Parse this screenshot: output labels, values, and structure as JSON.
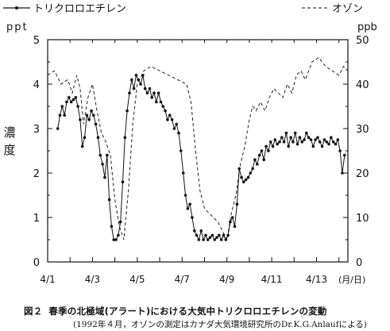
{
  "chart_data": {
    "type": "line",
    "legend": {
      "placement": "top",
      "entries": [
        "トリクロロエチレン",
        "オゾン"
      ]
    },
    "ylabel_left": "濃度",
    "left_axis_unit": "ppt",
    "right_axis_unit": "ppb",
    "x_unit": "(月/日)",
    "xlim": [
      0,
      13.4
    ],
    "ylim_left": [
      0,
      5
    ],
    "ylim_right": [
      0,
      50
    ],
    "x_tick_labels": [
      "4/1",
      "4/3",
      "4/5",
      "4/7",
      "4/9",
      "4/11",
      "4/13"
    ],
    "left_tick_labels": [
      "0",
      "1",
      "2",
      "3",
      "4",
      "5"
    ],
    "right_tick_labels": [
      "0",
      "10",
      "20",
      "30",
      "40",
      "50"
    ],
    "series": [
      {
        "name": "トリクロロエチレン",
        "axis": "left",
        "style": "solid-with-dots",
        "x": [
          0.45,
          0.55,
          0.65,
          0.75,
          0.85,
          0.95,
          1.05,
          1.15,
          1.25,
          1.35,
          1.45,
          1.55,
          1.65,
          1.75,
          1.85,
          1.95,
          2.05,
          2.15,
          2.25,
          2.35,
          2.45,
          2.55,
          2.65,
          2.75,
          2.85,
          2.95,
          3.05,
          3.15,
          3.25,
          3.35,
          3.45,
          3.55,
          3.65,
          3.75,
          3.85,
          3.95,
          4.05,
          4.15,
          4.25,
          4.35,
          4.45,
          4.55,
          4.65,
          4.75,
          4.85,
          4.95,
          5.05,
          5.15,
          5.25,
          5.35,
          5.45,
          5.55,
          5.65,
          5.75,
          5.85,
          5.95,
          6.05,
          6.15,
          6.25,
          6.35,
          6.45,
          6.55,
          6.65,
          6.75,
          6.85,
          6.95,
          7.05,
          7.15,
          7.25,
          7.35,
          7.45,
          7.55,
          7.65,
          7.75,
          7.85,
          7.95,
          8.05,
          8.15,
          8.25,
          8.35,
          8.45,
          8.55,
          8.65,
          8.75,
          8.85,
          8.95,
          9.05,
          9.15,
          9.25,
          9.35,
          9.45,
          9.55,
          9.65,
          9.75,
          9.85,
          9.95,
          10.05,
          10.15,
          10.25,
          10.35,
          10.45,
          10.55,
          10.65,
          10.75,
          10.85,
          10.95,
          11.05,
          11.15,
          11.25,
          11.35,
          11.45,
          11.55,
          11.65,
          11.75,
          11.85,
          11.95,
          12.05,
          12.15,
          12.25,
          12.35,
          12.45,
          12.55,
          12.65,
          12.75,
          12.85,
          12.95,
          13.05,
          13.15,
          13.25
        ],
        "y": [
          3.0,
          3.3,
          3.5,
          3.3,
          3.6,
          3.7,
          3.6,
          3.65,
          3.7,
          3.5,
          3.2,
          2.6,
          2.8,
          3.3,
          3.2,
          3.4,
          3.3,
          3.1,
          2.8,
          2.4,
          2.2,
          1.9,
          2.4,
          1.4,
          0.8,
          0.5,
          0.5,
          0.6,
          0.9,
          1.8,
          2.8,
          3.4,
          3.8,
          4.1,
          3.9,
          4.2,
          4.1,
          4.0,
          4.2,
          3.9,
          3.8,
          3.9,
          3.7,
          3.8,
          3.6,
          3.8,
          3.6,
          3.5,
          3.4,
          3.2,
          3.3,
          3.2,
          3.0,
          3.1,
          2.9,
          2.5,
          2.0,
          1.5,
          1.2,
          1.3,
          1.0,
          0.7,
          0.6,
          0.5,
          0.7,
          0.5,
          0.6,
          0.5,
          0.55,
          0.6,
          0.5,
          0.55,
          0.6,
          0.5,
          0.6,
          0.5,
          0.6,
          0.9,
          1.0,
          0.8,
          1.3,
          2.1,
          1.9,
          1.8,
          1.85,
          1.9,
          2.0,
          2.1,
          2.3,
          2.2,
          2.4,
          2.5,
          2.3,
          2.6,
          2.5,
          2.7,
          2.6,
          2.75,
          2.65,
          2.7,
          2.8,
          2.7,
          2.9,
          2.6,
          2.8,
          2.7,
          2.9,
          2.65,
          2.8,
          2.7,
          2.75,
          2.9,
          2.8,
          2.75,
          2.6,
          2.75,
          2.8,
          2.7,
          2.6,
          2.75,
          2.7,
          2.65,
          2.8,
          2.7,
          2.65,
          2.75,
          2.5,
          2.0,
          2.4
        ]
      },
      {
        "name": "オゾン",
        "axis": "right",
        "style": "dashed",
        "x": [
          0.0,
          0.3,
          0.6,
          0.9,
          1.1,
          1.3,
          1.45,
          1.6,
          1.8,
          2.0,
          2.2,
          2.4,
          2.6,
          2.8,
          3.0,
          3.2,
          3.4,
          3.6,
          3.8,
          4.0,
          4.3,
          4.6,
          5.0,
          5.4,
          5.8,
          6.2,
          6.4,
          6.6,
          6.8,
          7.0,
          7.2,
          7.4,
          7.6,
          7.8,
          8.0,
          8.2,
          8.4,
          8.6,
          8.8,
          9.0,
          9.15,
          9.3,
          9.5,
          9.7,
          9.9,
          10.1,
          10.3,
          10.5,
          10.7,
          10.9,
          11.1,
          11.3,
          11.5,
          11.8,
          12.1,
          12.4,
          12.7,
          13.0,
          13.2,
          13.4
        ],
        "y": [
          42,
          43,
          40,
          41,
          38,
          42,
          39,
          31,
          37,
          40,
          34,
          29,
          27,
          24,
          14,
          8,
          5,
          16,
          31,
          40,
          43,
          44,
          43,
          42,
          41,
          40,
          36,
          25,
          16,
          12,
          11,
          10,
          9,
          7,
          5,
          11,
          15,
          22,
          26,
          32,
          35,
          34,
          36,
          34,
          37,
          39,
          38,
          37,
          40,
          38,
          42,
          43,
          41,
          45,
          46,
          44,
          43,
          42,
          44,
          43
        ]
      }
    ]
  },
  "caption": {
    "fig_label": "図２",
    "title": "春季の北極域(アラート)における大気中トリクロロエチレンの変動",
    "note": "(1992年４月，オゾンの測定はカナダ大気環境研究所のDr.K.G.Anlaufによる)"
  },
  "colors": {
    "line": "#111111",
    "text": "#111111",
    "background": "#ffffff"
  }
}
